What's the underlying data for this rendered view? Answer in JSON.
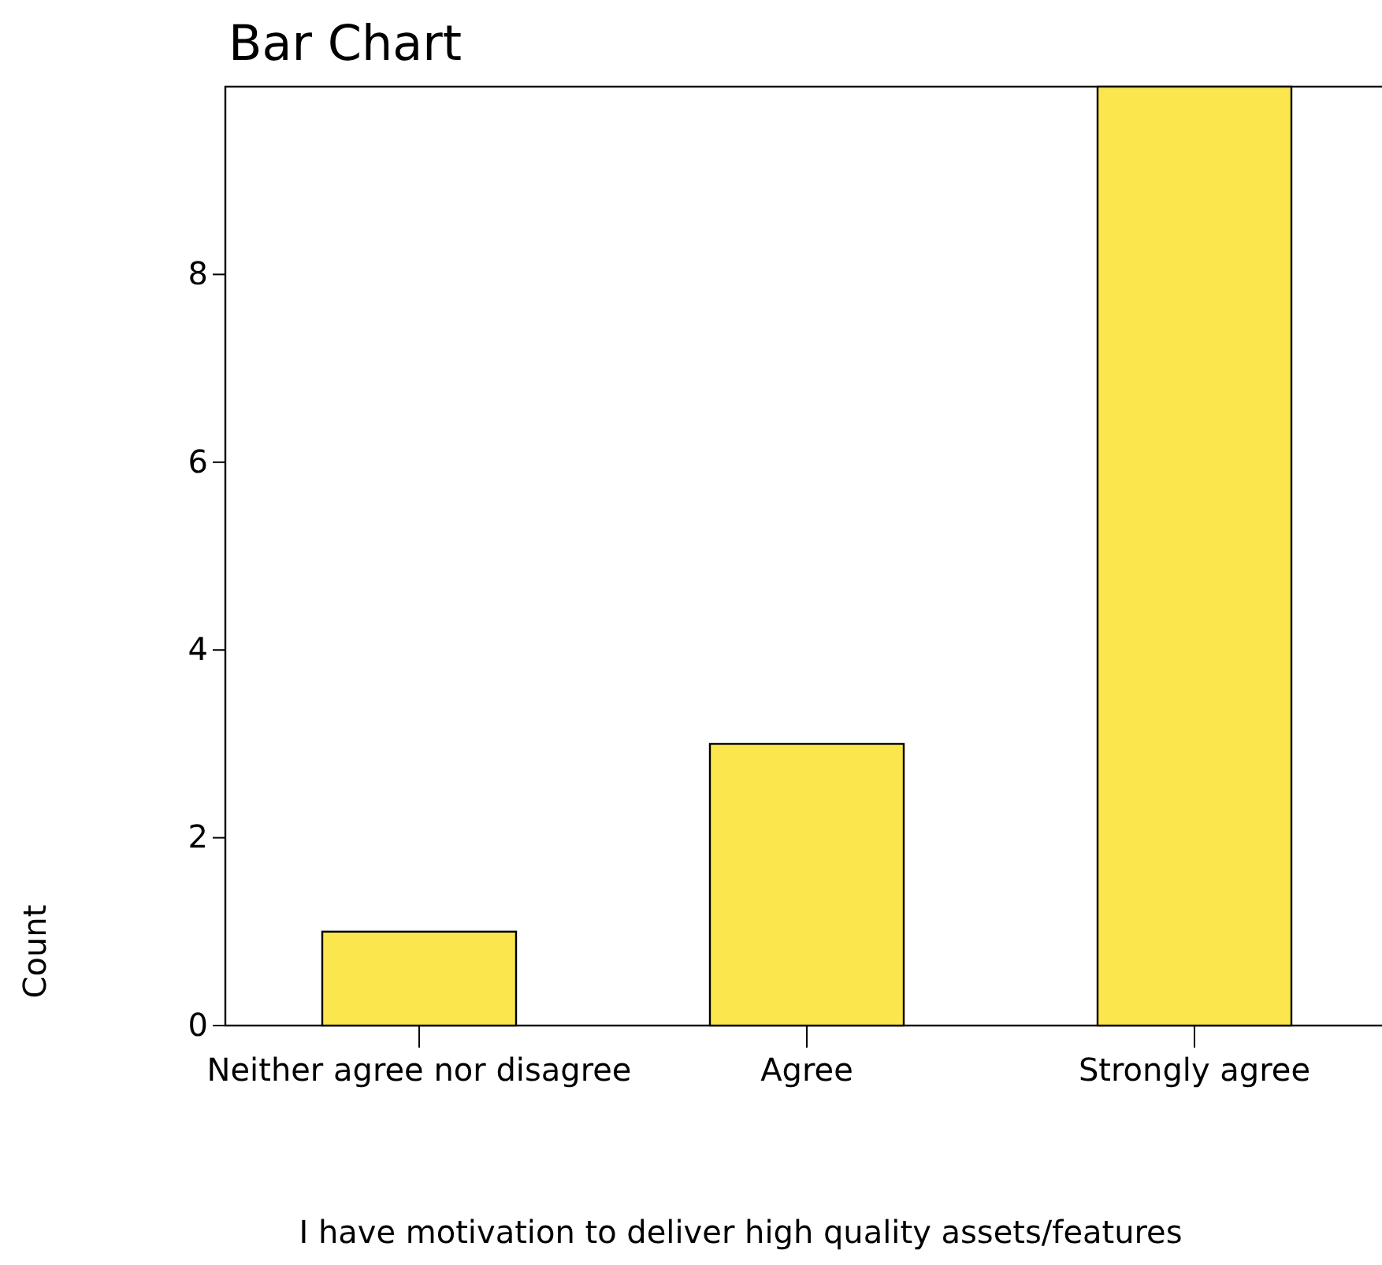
{
  "chart_data": {
    "type": "bar",
    "title": "Bar Chart",
    "xlabel": "I have motivation to deliver high quality assets/features",
    "ylabel": "Count",
    "categories": [
      "Neither agree nor disagree",
      "Agree",
      "Strongly agree"
    ],
    "values": [
      1,
      3,
      10
    ],
    "color": "#fce64d",
    "ylim": [
      0,
      10
    ],
    "yticks": [
      0,
      2,
      4,
      6,
      8
    ],
    "grid": false
  }
}
